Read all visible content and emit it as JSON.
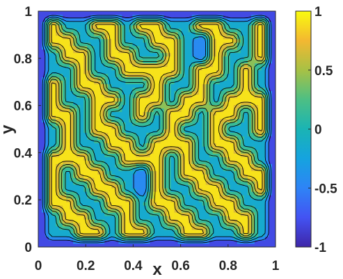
{
  "chart_data": {
    "type": "heatmap",
    "plot_style": "filled-contour",
    "title": "",
    "xlabel": "x",
    "ylabel": "y",
    "xlim": [
      0,
      1
    ],
    "ylim": [
      0,
      1
    ],
    "x_ticks": [
      "0",
      "0.2",
      "0.4",
      "0.6",
      "0.8",
      "1"
    ],
    "y_ticks": [
      "0",
      "0.2",
      "0.4",
      "0.6",
      "0.8",
      "1"
    ],
    "x_tick_values": [
      0,
      0.2,
      0.4,
      0.6,
      0.8,
      1
    ],
    "y_tick_values": [
      0,
      0.2,
      0.4,
      0.6,
      0.8,
      1
    ],
    "colorbar": {
      "range": [
        -1,
        1
      ],
      "ticks": [
        "1",
        "0.5",
        "0",
        "-0.5",
        "-1"
      ],
      "tick_values": [
        1,
        0.5,
        0,
        -0.5,
        -1
      ],
      "colormap": "parula"
    },
    "grid_resolution": 16,
    "field": [
      [
        -1,
        -1,
        -1,
        -1,
        -1,
        -1,
        -1,
        -1,
        -1,
        -1,
        -1,
        -1,
        -1,
        -1,
        -1,
        -1,
        -1
      ],
      [
        -1,
        -0.1,
        -0.1,
        0.9,
        0.9,
        -0.1,
        0.9,
        0.9,
        -0.1,
        -0.1,
        0.9,
        0.9,
        -0.1,
        -0.1,
        0.9,
        -0.1,
        -1
      ],
      [
        -1,
        -0.1,
        0.9,
        0.9,
        -0.1,
        -0.1,
        0.9,
        -0.1,
        -0.1,
        0.9,
        0.9,
        -0.1,
        -0.1,
        0.9,
        0.9,
        -0.1,
        -1
      ],
      [
        -1,
        0.9,
        0.9,
        -0.1,
        -0.1,
        0.9,
        0.9,
        -0.1,
        0.9,
        0.9,
        -0.1,
        -0.1,
        0.9,
        0.9,
        -0.1,
        -0.1,
        -1
      ],
      [
        -1,
        0.9,
        -0.1,
        -0.1,
        0.9,
        0.9,
        -0.1,
        -0.6,
        0.9,
        -0.1,
        -0.1,
        0.9,
        0.9,
        -0.1,
        -0.1,
        0.9,
        -1
      ],
      [
        -1,
        0.9,
        -0.1,
        0.9,
        0.9,
        -0.1,
        -0.1,
        -0.6,
        0.9,
        -0.1,
        0.9,
        0.9,
        -0.1,
        -0.1,
        0.9,
        0.9,
        -1
      ],
      [
        -1,
        0.9,
        0.9,
        0.9,
        -0.1,
        -0.1,
        0.9,
        0.9,
        0.9,
        -0.1,
        0.9,
        -0.1,
        -0.1,
        0.9,
        0.9,
        -0.1,
        -1
      ],
      [
        -1,
        -0.1,
        0.9,
        -0.1,
        -0.1,
        0.9,
        0.9,
        -0.1,
        0.9,
        0.9,
        0.9,
        -0.1,
        0.9,
        0.9,
        -0.1,
        -0.1,
        -1
      ],
      [
        -1,
        -0.1,
        0.9,
        -0.1,
        0.9,
        0.9,
        -0.1,
        -0.1,
        -0.1,
        0.9,
        -0.1,
        -0.1,
        0.9,
        -0.1,
        -0.1,
        0.9,
        -1
      ],
      [
        -1,
        0.9,
        0.9,
        -0.1,
        0.9,
        -0.1,
        -0.1,
        0.9,
        -0.1,
        0.9,
        0.9,
        -0.1,
        0.9,
        0.9,
        -0.1,
        0.9,
        -1
      ],
      [
        -1,
        0.9,
        -0.1,
        -0.1,
        0.9,
        0.9,
        -0.1,
        0.9,
        0.9,
        -0.1,
        0.9,
        0.9,
        -0.1,
        0.9,
        0.9,
        0.9,
        -1
      ],
      [
        -1,
        0.9,
        -0.1,
        0.9,
        0.9,
        -0.1,
        -0.1,
        -0.1,
        0.9,
        -0.1,
        -0.1,
        0.9,
        -0.1,
        -0.1,
        0.9,
        -0.1,
        -1
      ],
      [
        -1,
        -0.1,
        -0.1,
        0.9,
        -0.1,
        -0.1,
        0.9,
        0.9,
        0.9,
        0.9,
        -0.1,
        0.9,
        0.9,
        -0.1,
        0.9,
        -0.1,
        -1
      ],
      [
        -1,
        -0.1,
        0.9,
        0.9,
        -0.1,
        0.9,
        0.9,
        -0.1,
        -0.1,
        0.9,
        -0.1,
        -0.6,
        0.9,
        -0.1,
        -0.1,
        0.9,
        -1
      ],
      [
        -1,
        0.9,
        0.9,
        -0.1,
        -0.1,
        0.9,
        -0.1,
        -0.1,
        0.9,
        0.9,
        -0.1,
        -0.6,
        0.9,
        0.9,
        -0.1,
        0.9,
        -1
      ],
      [
        -1,
        0.9,
        -0.1,
        -0.1,
        0.9,
        0.9,
        -0.1,
        0.9,
        0.9,
        -0.1,
        -0.1,
        0.9,
        0.9,
        -0.1,
        -0.1,
        0.9,
        -1
      ],
      [
        -1,
        -1,
        -1,
        -1,
        -1,
        -1,
        -1,
        -1,
        -1,
        -1,
        -1,
        -1,
        -1,
        -1,
        -1,
        -1,
        -1
      ]
    ]
  }
}
